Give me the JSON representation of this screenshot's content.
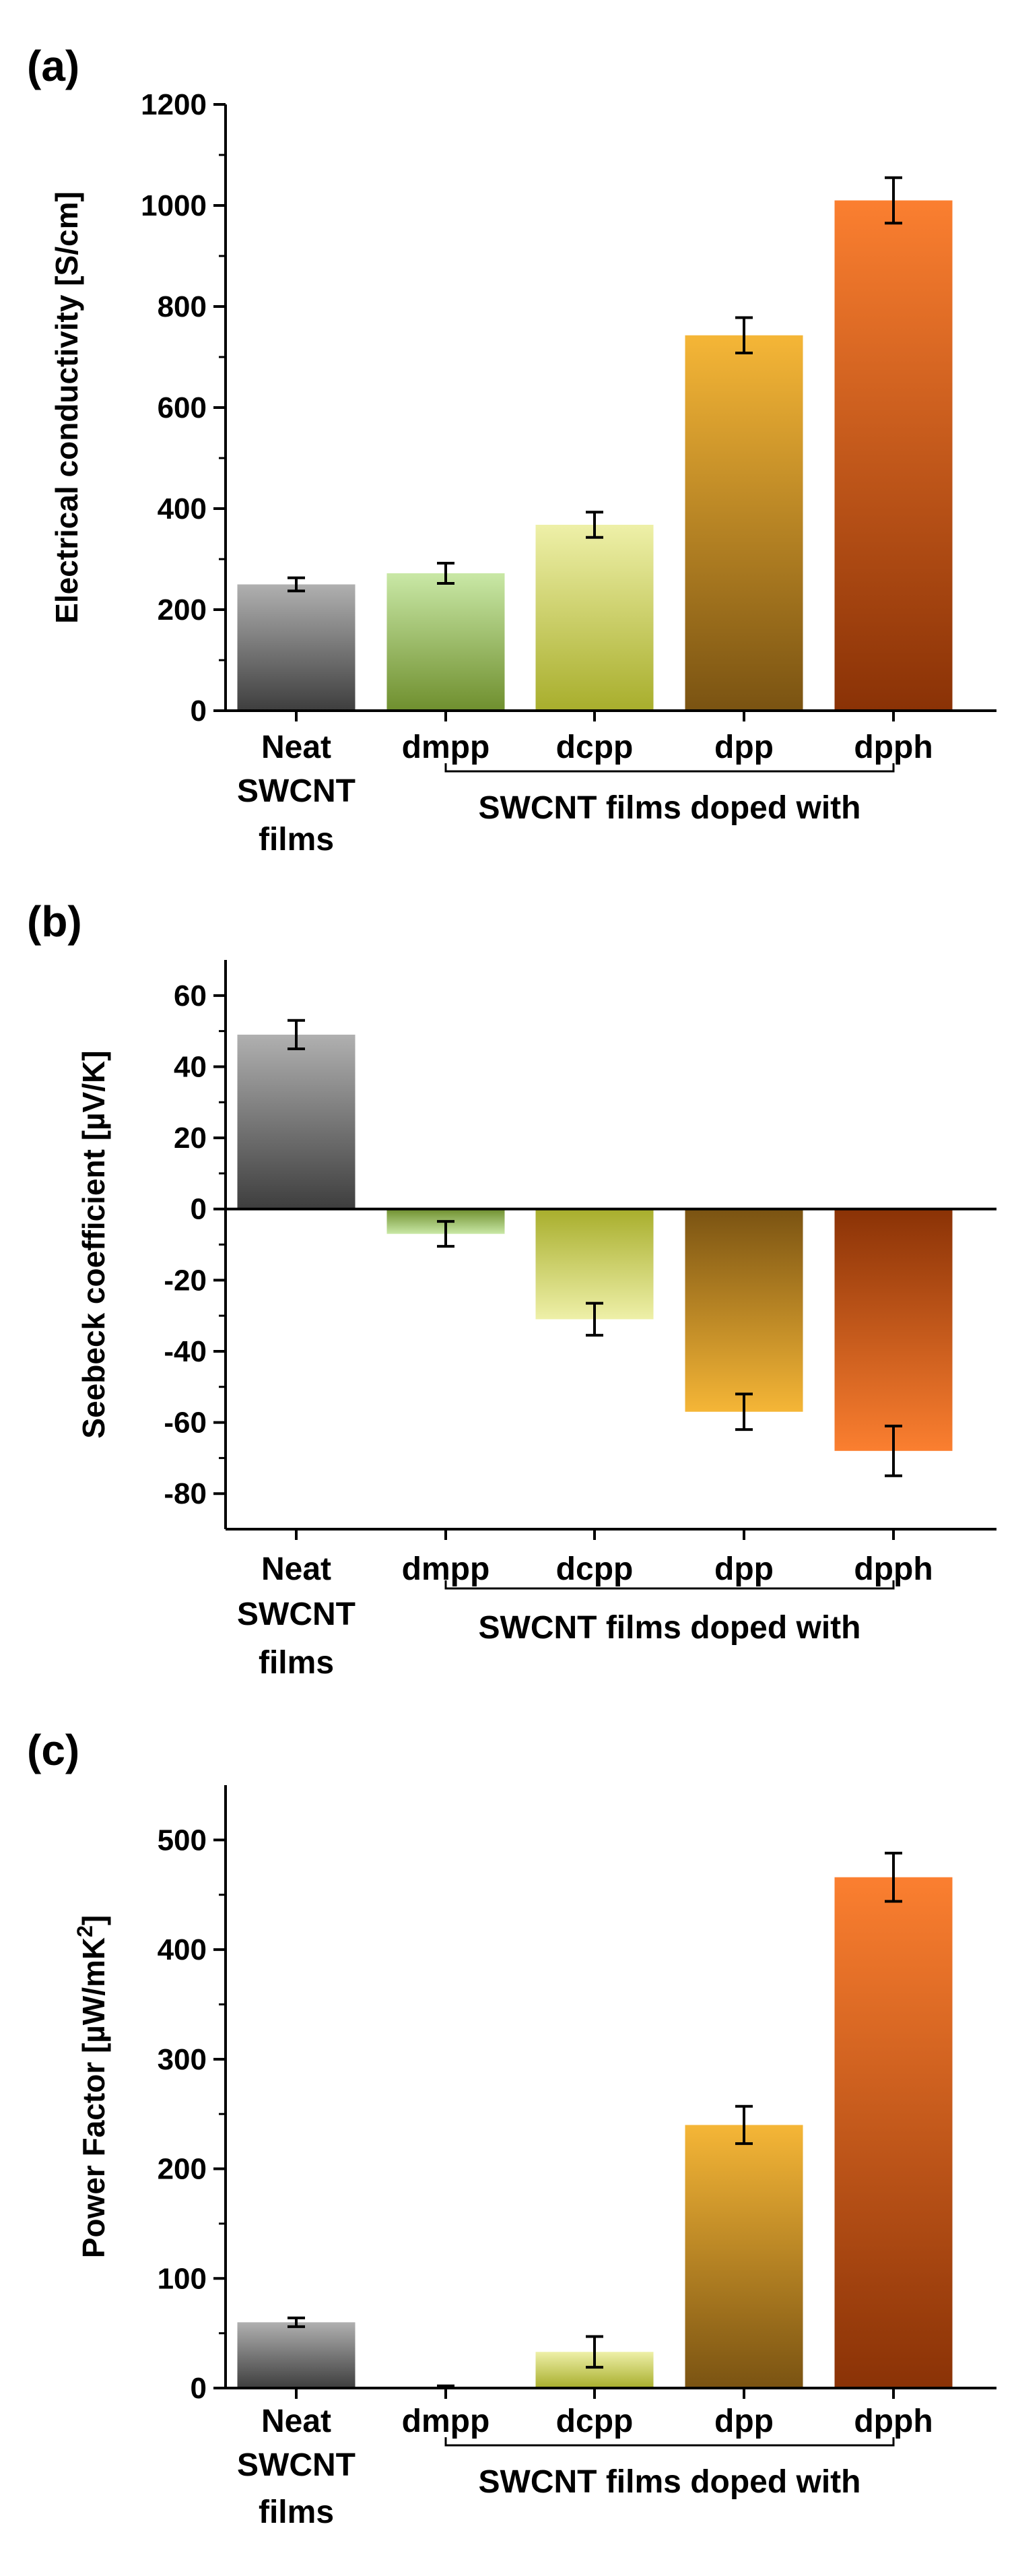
{
  "chart_data": [
    {
      "panel_label": "(a)",
      "type": "bar",
      "ylabel": "Electrical conductivity [S/cm]",
      "ylim": [
        0,
        1200
      ],
      "yticks": [
        0,
        200,
        400,
        600,
        800,
        1000,
        1200
      ],
      "ytick_labels": [
        "0",
        "200",
        "400",
        "600",
        "800",
        "1000",
        "1200"
      ],
      "categories": [
        "Neat",
        "dmpp",
        "dcpp",
        "dpp",
        "dpph"
      ],
      "category_sublabels": [
        "SWCNT",
        "films"
      ],
      "group_label": "SWCNT films doped with",
      "values": [
        250,
        272,
        368,
        743,
        1010
      ],
      "errors": [
        13,
        20,
        25,
        35,
        45
      ]
    },
    {
      "panel_label": "(b)",
      "type": "bar",
      "ylabel": "Seebeck coefficient [µV/K]",
      "ylim": [
        -90,
        70
      ],
      "yticks": [
        -80,
        -60,
        -40,
        -20,
        0,
        20,
        40,
        60
      ],
      "ytick_labels": [
        "-80",
        "-60",
        "-40",
        "-20",
        "0",
        "20",
        "40",
        "60"
      ],
      "categories": [
        "Neat",
        "dmpp",
        "dcpp",
        "dpp",
        "dpph"
      ],
      "category_sublabels": [
        "SWCNT",
        "films"
      ],
      "group_label": "SWCNT films doped with",
      "values": [
        49,
        -7,
        -31,
        -57,
        -68
      ],
      "errors": [
        4,
        3.5,
        4.5,
        5,
        7
      ]
    },
    {
      "panel_label": "(c)",
      "type": "bar",
      "ylabel": "Power Factor [µW/mK",
      "ylabel_superscript": "2",
      "ylabel_end": "]",
      "ylim": [
        0,
        550
      ],
      "yticks": [
        0,
        100,
        200,
        300,
        400,
        500
      ],
      "ytick_labels": [
        "0",
        "100",
        "200",
        "300",
        "400",
        "500"
      ],
      "categories": [
        "Neat",
        "dmpp",
        "dcpp",
        "dpp",
        "dpph"
      ],
      "category_sublabels": [
        "SWCNT",
        "films"
      ],
      "group_label": "SWCNT films doped with",
      "values": [
        60,
        1,
        33,
        240,
        466
      ],
      "errors": [
        4,
        1,
        14,
        17,
        22
      ]
    }
  ],
  "colors": {
    "neat": [
      "#b0b0b0",
      "#3e3e3e"
    ],
    "dmpp": [
      "#c9e8a6",
      "#6f8f2e"
    ],
    "dcpp": [
      "#eef0a8",
      "#a8ae2c"
    ],
    "dpp": [
      "#f5b637",
      "#7a5312"
    ],
    "dpph": [
      "#fb7f30",
      "#8a3206"
    ]
  }
}
